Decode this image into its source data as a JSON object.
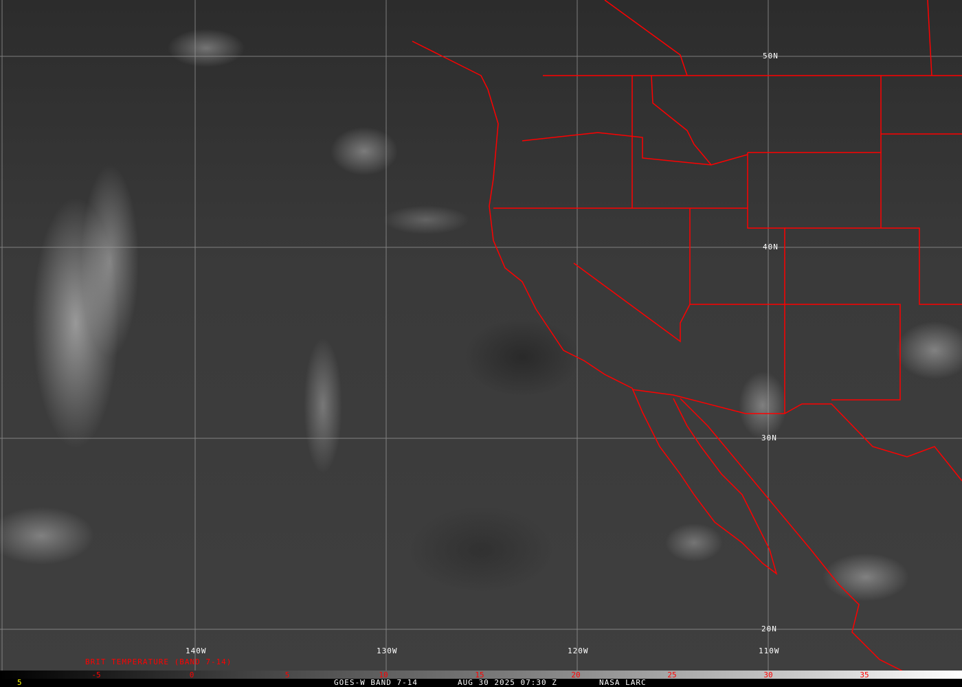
{
  "map": {
    "latitude_labels": [
      "50N",
      "40N",
      "30N",
      "20N"
    ],
    "longitude_labels": [
      "140W",
      "130W",
      "120W",
      "110W"
    ],
    "border_color": "#ff0000",
    "grid_color": "#a0a0a0"
  },
  "legend": {
    "title": "BRIT TEMPERATURE (BAND 7-14)",
    "ticks": [
      "-5",
      "0",
      "5",
      "10",
      "15",
      "20",
      "25",
      "30",
      "35"
    ],
    "corner_value": "5"
  },
  "footer": {
    "satellite": "GOES-W BAND 7-14",
    "datetime": "AUG 30 2025 07:30 Z",
    "source": "NASA LARC"
  }
}
